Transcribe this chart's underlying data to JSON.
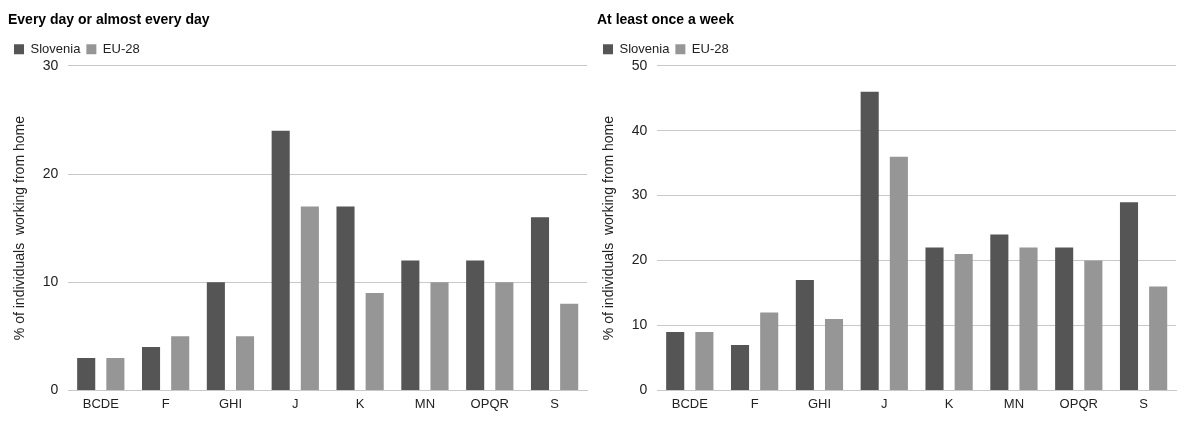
{
  "chart_data": [
    {
      "type": "bar",
      "title": "Every day or almost every day",
      "ylabel": "% of individuals  working from home",
      "categories": [
        "BCDE",
        "F",
        "GHI",
        "J",
        "K",
        "MN",
        "OPQR",
        "S"
      ],
      "series": [
        {
          "name": "Slovenia",
          "color": "#555555",
          "values": [
            3,
            4,
            10,
            24,
            17,
            12,
            12,
            16
          ]
        },
        {
          "name": "EU-28",
          "color": "#969696",
          "values": [
            3,
            5,
            5,
            17,
            9,
            10,
            10,
            8
          ]
        }
      ],
      "ylim": [
        0,
        30
      ],
      "yticks": [
        0,
        10,
        20,
        30
      ],
      "grid": "y",
      "legend": "top left"
    },
    {
      "type": "bar",
      "title": "At least once a week",
      "ylabel": "% of individuals  working from home",
      "categories": [
        "BCDE",
        "F",
        "GHI",
        "J",
        "K",
        "MN",
        "OPQR",
        "S"
      ],
      "series": [
        {
          "name": "Slovenia",
          "color": "#555555",
          "values": [
            9,
            7,
            17,
            46,
            22,
            24,
            22,
            29
          ]
        },
        {
          "name": "EU-28",
          "color": "#969696",
          "values": [
            9,
            12,
            11,
            36,
            21,
            22,
            20,
            16
          ]
        }
      ],
      "ylim": [
        0,
        50
      ],
      "yticks": [
        0,
        10,
        20,
        30,
        40,
        50
      ],
      "grid": "y",
      "legend": "top left"
    }
  ]
}
